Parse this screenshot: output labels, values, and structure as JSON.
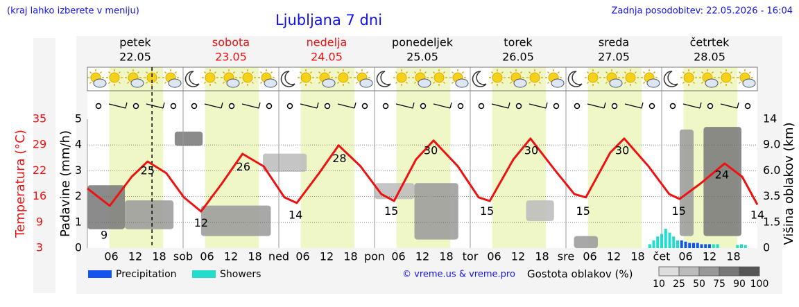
{
  "header": {
    "note": "(kraj lahko izberete v meniju)",
    "updated": "Zadnja posodobitev: 22.05.2026 - 16:04",
    "credit": "© vreme.us & vreme.pro"
  },
  "chart_data": {
    "type": "meteogram",
    "title": "Ljubljana 7 dni",
    "xlim": [
      0,
      168
    ],
    "now": 16.2,
    "hour_ticks": [
      {
        "value": 6,
        "label": "06"
      },
      {
        "value": 12,
        "label": "12"
      },
      {
        "value": 18,
        "label": "18"
      }
    ],
    "days": [
      {
        "name": "petek",
        "date": "22.05",
        "short": null,
        "weekend": false
      },
      {
        "name": "sobota",
        "date": "23.05",
        "short": "sob",
        "weekend": true
      },
      {
        "name": "nedelja",
        "date": "24.05",
        "short": "ned",
        "weekend": true
      },
      {
        "name": "ponedeljek",
        "date": "25.05",
        "short": "pon",
        "weekend": false
      },
      {
        "name": "torek",
        "date": "26.05",
        "short": "tor",
        "weekend": false
      },
      {
        "name": "sreda",
        "date": "27.05",
        "short": "sre",
        "weekend": false
      },
      {
        "name": "četrtek",
        "date": "28.05",
        "short": "čet",
        "weekend": false
      }
    ],
    "ylabel": "Padavine (mm/h)",
    "ylim": [
      0,
      5
    ],
    "yticks": [
      0,
      1,
      2,
      3,
      4,
      5
    ],
    "grid": true,
    "tlabel": "Temperatura (°C)",
    "tlim": [
      3,
      35
    ],
    "tticks": [
      35,
      {
        "value": 28.6,
        "label": "29"
      },
      {
        "value": 22.2,
        "label": "22"
      },
      {
        "value": 15.8,
        "label": "16"
      },
      {
        "value": 9.4,
        "label": "9"
      },
      3
    ],
    "y2label": "Višina oblakov (km)",
    "y2ticks": [
      0,
      1.5,
      3.5,
      {
        "value": 6,
        "label": "6.0"
      },
      {
        "value": 9,
        "label": "9.0"
      },
      14
    ],
    "temperature": {
      "color": "#ee1111",
      "x": [
        0,
        5.6,
        11.1,
        15.1,
        19.8,
        24.2,
        28.5,
        33.7,
        38.9,
        44.2,
        49.4,
        52.5,
        58.1,
        63,
        68.5,
        73.7,
        76.9,
        82.4,
        86.8,
        92.9,
        98.1,
        100.9,
        106.8,
        111.1,
        117.2,
        122.1,
        125,
        131.1,
        134.6,
        140.7,
        145.9,
        148.5,
        153.7,
        159.8,
        164.2,
        168
      ],
      "values": [
        17.8,
        13.5,
        20.7,
        24.5,
        21.6,
        15.6,
        12.1,
        19,
        26.4,
        23.3,
        15.6,
        14.2,
        21.6,
        28.5,
        23.3,
        16.4,
        14.7,
        25,
        29.7,
        23.3,
        15.6,
        14.7,
        25,
        30.2,
        22.4,
        16.4,
        15.6,
        26.7,
        30.2,
        23.3,
        16.4,
        15.2,
        19,
        24,
        20.7,
        13.8
      ]
    },
    "extremes": {
      "x": [
        4.2,
        15.1,
        28.5,
        39.1,
        52.2,
        63.2,
        76.2,
        86.1,
        100.2,
        111.3,
        124.3,
        134.1,
        148.3,
        159.1,
        168
      ],
      "values": [
        9,
        25,
        12,
        26,
        14,
        28,
        15,
        30,
        15,
        30,
        15,
        30,
        15,
        24,
        14
      ]
    },
    "series": [
      {
        "name": "Precipitation",
        "color": "#1155ee",
        "x": [
          149,
          150,
          151,
          152,
          153,
          154,
          155,
          156
        ],
        "values": [
          0.3,
          0.25,
          0.2,
          0.2,
          0.2,
          0.15,
          0.15,
          0.15
        ]
      },
      {
        "name": "Showers",
        "color": "#22ddcc",
        "x": [
          141,
          142,
          143,
          144,
          145,
          146,
          147,
          148,
          157,
          158,
          163,
          164,
          165
        ],
        "values": [
          0.15,
          0.3,
          0.45,
          0.55,
          0.75,
          0.6,
          0.45,
          0.3,
          0.15,
          0.15,
          0.12,
          0.15,
          0.12
        ]
      }
    ],
    "density_legend": {
      "title": "Gostota oblakov (%)",
      "levels": [
        10,
        25,
        50,
        75,
        90,
        100
      ],
      "colors": [
        "#dddddd",
        "#bbbbbb",
        "#999999",
        "#777777",
        "#555555"
      ]
    },
    "clouds": [
      {
        "x": [
          0,
          9.4
        ],
        "height": [
          1.1,
          4.6
        ],
        "density": 75
      },
      {
        "x": [
          9.4,
          21.6
        ],
        "height": [
          1.1,
          3.2
        ],
        "density": 50
      },
      {
        "x": [
          21.9,
          28.9
        ],
        "height": [
          8.9,
          11.6
        ],
        "density": 75
      },
      {
        "x": [
          28.5,
          46
        ],
        "height": [
          0.7,
          2.8
        ],
        "density": 50
      },
      {
        "x": [
          44,
          55
        ],
        "height": [
          5.9,
          8
        ],
        "density": 25
      },
      {
        "x": [
          72,
          82
        ],
        "height": [
          3.3,
          4.8
        ],
        "density": 25
      },
      {
        "x": [
          82,
          93
        ],
        "height": [
          0.5,
          4.8
        ],
        "density": 50
      },
      {
        "x": [
          110,
          117
        ],
        "height": [
          1.6,
          3.2
        ],
        "density": 25
      },
      {
        "x": [
          122,
          128
        ],
        "height": [
          0,
          0.7
        ],
        "density": 50
      },
      {
        "x": [
          148.5,
          152
        ],
        "height": [
          0.7,
          12
        ],
        "density": 50
      },
      {
        "x": [
          154.5,
          164
        ],
        "height": [
          0.7,
          12.5
        ],
        "density": 75
      }
    ]
  }
}
